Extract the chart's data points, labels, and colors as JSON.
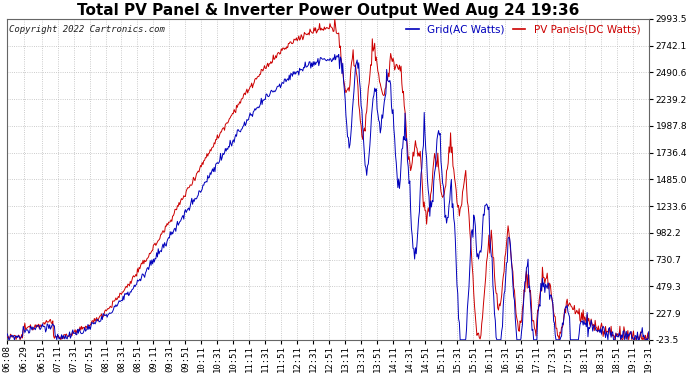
{
  "title": "Total PV Panel & Inverter Power Output Wed Aug 24 19:36",
  "copyright": "Copyright 2022 Cartronics.com",
  "legend_blue": "Grid(AC Watts)",
  "legend_red": "PV Panels(DC Watts)",
  "ymin": -23.5,
  "ymax": 2993.5,
  "yticks": [
    2993.5,
    2742.1,
    2490.6,
    2239.2,
    1987.8,
    1736.4,
    1485.0,
    1233.6,
    982.2,
    730.7,
    479.3,
    227.9,
    -23.5
  ],
  "background_color": "#ffffff",
  "grid_color": "#bbbbbb",
  "blue_color": "#0000bb",
  "red_color": "#cc0000",
  "title_color": "#000000",
  "title_fontsize": 11,
  "tick_fontsize": 6.5,
  "copyright_fontsize": 6.5
}
